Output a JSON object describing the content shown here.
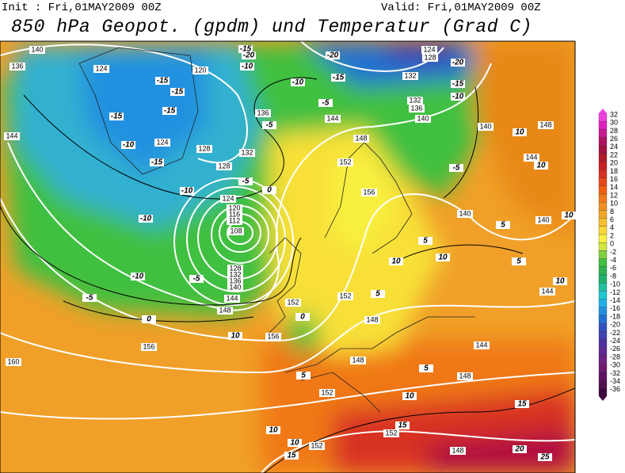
{
  "header": {
    "init": "Init : Fri,01MAY2009 00Z",
    "valid": "Valid: Fri,01MAY2009 00Z",
    "title": "850 hPa Geopot. (gpdm) und Temperatur (Grad C)"
  },
  "colorbar": {
    "ticks": [
      32,
      30,
      28,
      26,
      24,
      22,
      20,
      18,
      16,
      14,
      12,
      10,
      8,
      6,
      4,
      2,
      0,
      -2,
      -4,
      -6,
      -8,
      -10,
      -12,
      -14,
      -16,
      -18,
      -20,
      -22,
      -24,
      -26,
      -28,
      -30,
      -32,
      -34,
      -36
    ],
    "colors": [
      "#f040e0",
      "#e020c0",
      "#c81890",
      "#b01060",
      "#a01040",
      "#b01828",
      "#c82020",
      "#d83020",
      "#e84818",
      "#f06010",
      "#f07818",
      "#f09020",
      "#f0a828",
      "#f8c030",
      "#f8d838",
      "#f8f040",
      "#d0e840",
      "#80d040",
      "#40c040",
      "#30b050",
      "#20b070",
      "#20c0a0",
      "#20c8d0",
      "#20b0e8",
      "#2090e0",
      "#2070d0",
      "#3050c0",
      "#4040b0",
      "#5030a0",
      "#602890",
      "#702080",
      "#701870",
      "#601060",
      "#501050",
      "#400840"
    ]
  },
  "map": {
    "geopotential_labels": [
      140,
      136,
      124,
      120,
      144,
      124,
      128,
      132,
      136,
      124,
      120,
      116,
      112,
      108,
      128,
      132,
      136,
      140,
      144,
      148,
      152,
      156,
      156,
      160,
      148,
      152,
      148,
      152,
      152,
      152,
      148,
      148,
      144,
      144,
      140,
      140,
      144,
      148,
      140,
      140,
      136,
      132,
      132,
      128,
      124,
      144,
      148,
      152,
      156,
      128
    ],
    "temperature_labels": [
      -15,
      -20,
      -10,
      -20,
      -20,
      -15,
      -15,
      -15,
      -15,
      -10,
      -15,
      -10,
      -5,
      -10,
      -15,
      -5,
      -5,
      -15,
      -10,
      -10,
      -10,
      -5,
      -5,
      0,
      10,
      0,
      5,
      10,
      15,
      10,
      10,
      15,
      15,
      20,
      25,
      10,
      10,
      5,
      5,
      5,
      5,
      10,
      10,
      10,
      10,
      -5,
      5,
      0
    ]
  }
}
